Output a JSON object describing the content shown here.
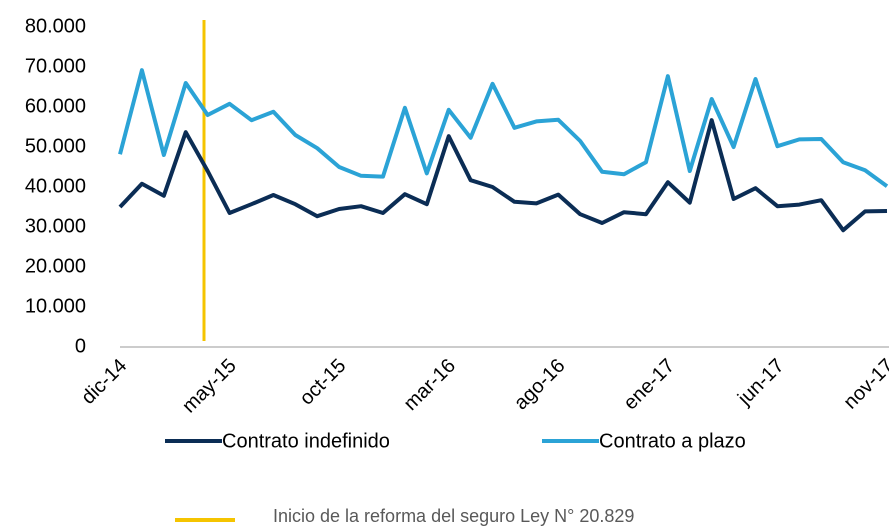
{
  "chart_data": {
    "type": "line",
    "categories": [
      "dic-14",
      null,
      null,
      null,
      null,
      "may-15",
      null,
      null,
      null,
      null,
      "oct-15",
      null,
      null,
      null,
      null,
      "mar-16",
      null,
      null,
      null,
      null,
      "ago-16",
      null,
      null,
      null,
      null,
      "ene-17",
      null,
      null,
      null,
      null,
      "jun-17",
      null,
      null,
      null,
      null,
      "nov-17"
    ],
    "series": [
      {
        "name": "Contrato indefinido",
        "color": "#0b2d55",
        "values": [
          35000,
          40800,
          37800,
          53700,
          44000,
          33500,
          35700,
          38000,
          35700,
          32700,
          34500,
          35200,
          33500,
          38200,
          35700,
          52700,
          41700,
          40000,
          36300,
          35900,
          38100,
          33200,
          31000,
          33700,
          33200,
          41200,
          36100,
          56700,
          37000,
          39700,
          35200,
          35600,
          36700,
          29200,
          33900,
          34000
        ]
      },
      {
        "name": "Contrato a plazo",
        "color": "#2ba3d6",
        "values": [
          48200,
          69200,
          48000,
          66000,
          58000,
          60800,
          56700,
          58800,
          53000,
          49700,
          45000,
          42800,
          42600,
          59800,
          43400,
          59300,
          52300,
          65800,
          54800,
          56400,
          56800,
          51500,
          43800,
          43200,
          46200,
          67700,
          44000,
          62000,
          50000,
          67000,
          50200,
          51900,
          52000,
          46200,
          44200,
          40200
        ]
      }
    ],
    "ylim": [
      0,
      80000
    ],
    "yticks": [
      0,
      {
        "value": 10000,
        "label": "10.000"
      },
      {
        "value": 20000,
        "label": "20.000"
      },
      {
        "value": 30000,
        "label": "30.000"
      },
      {
        "value": 40000,
        "label": "40.000"
      },
      {
        "value": 50000,
        "label": "50.000"
      },
      {
        "value": 60000,
        "label": "60.000"
      },
      {
        "value": 70000,
        "label": "70.000"
      },
      {
        "value": 80000,
        "label": "80.000"
      }
    ],
    "grid": false,
    "annotation": "Inicio de la reforma del seguro Ley N° 20.829",
    "annotation_color": "#f5c400"
  }
}
